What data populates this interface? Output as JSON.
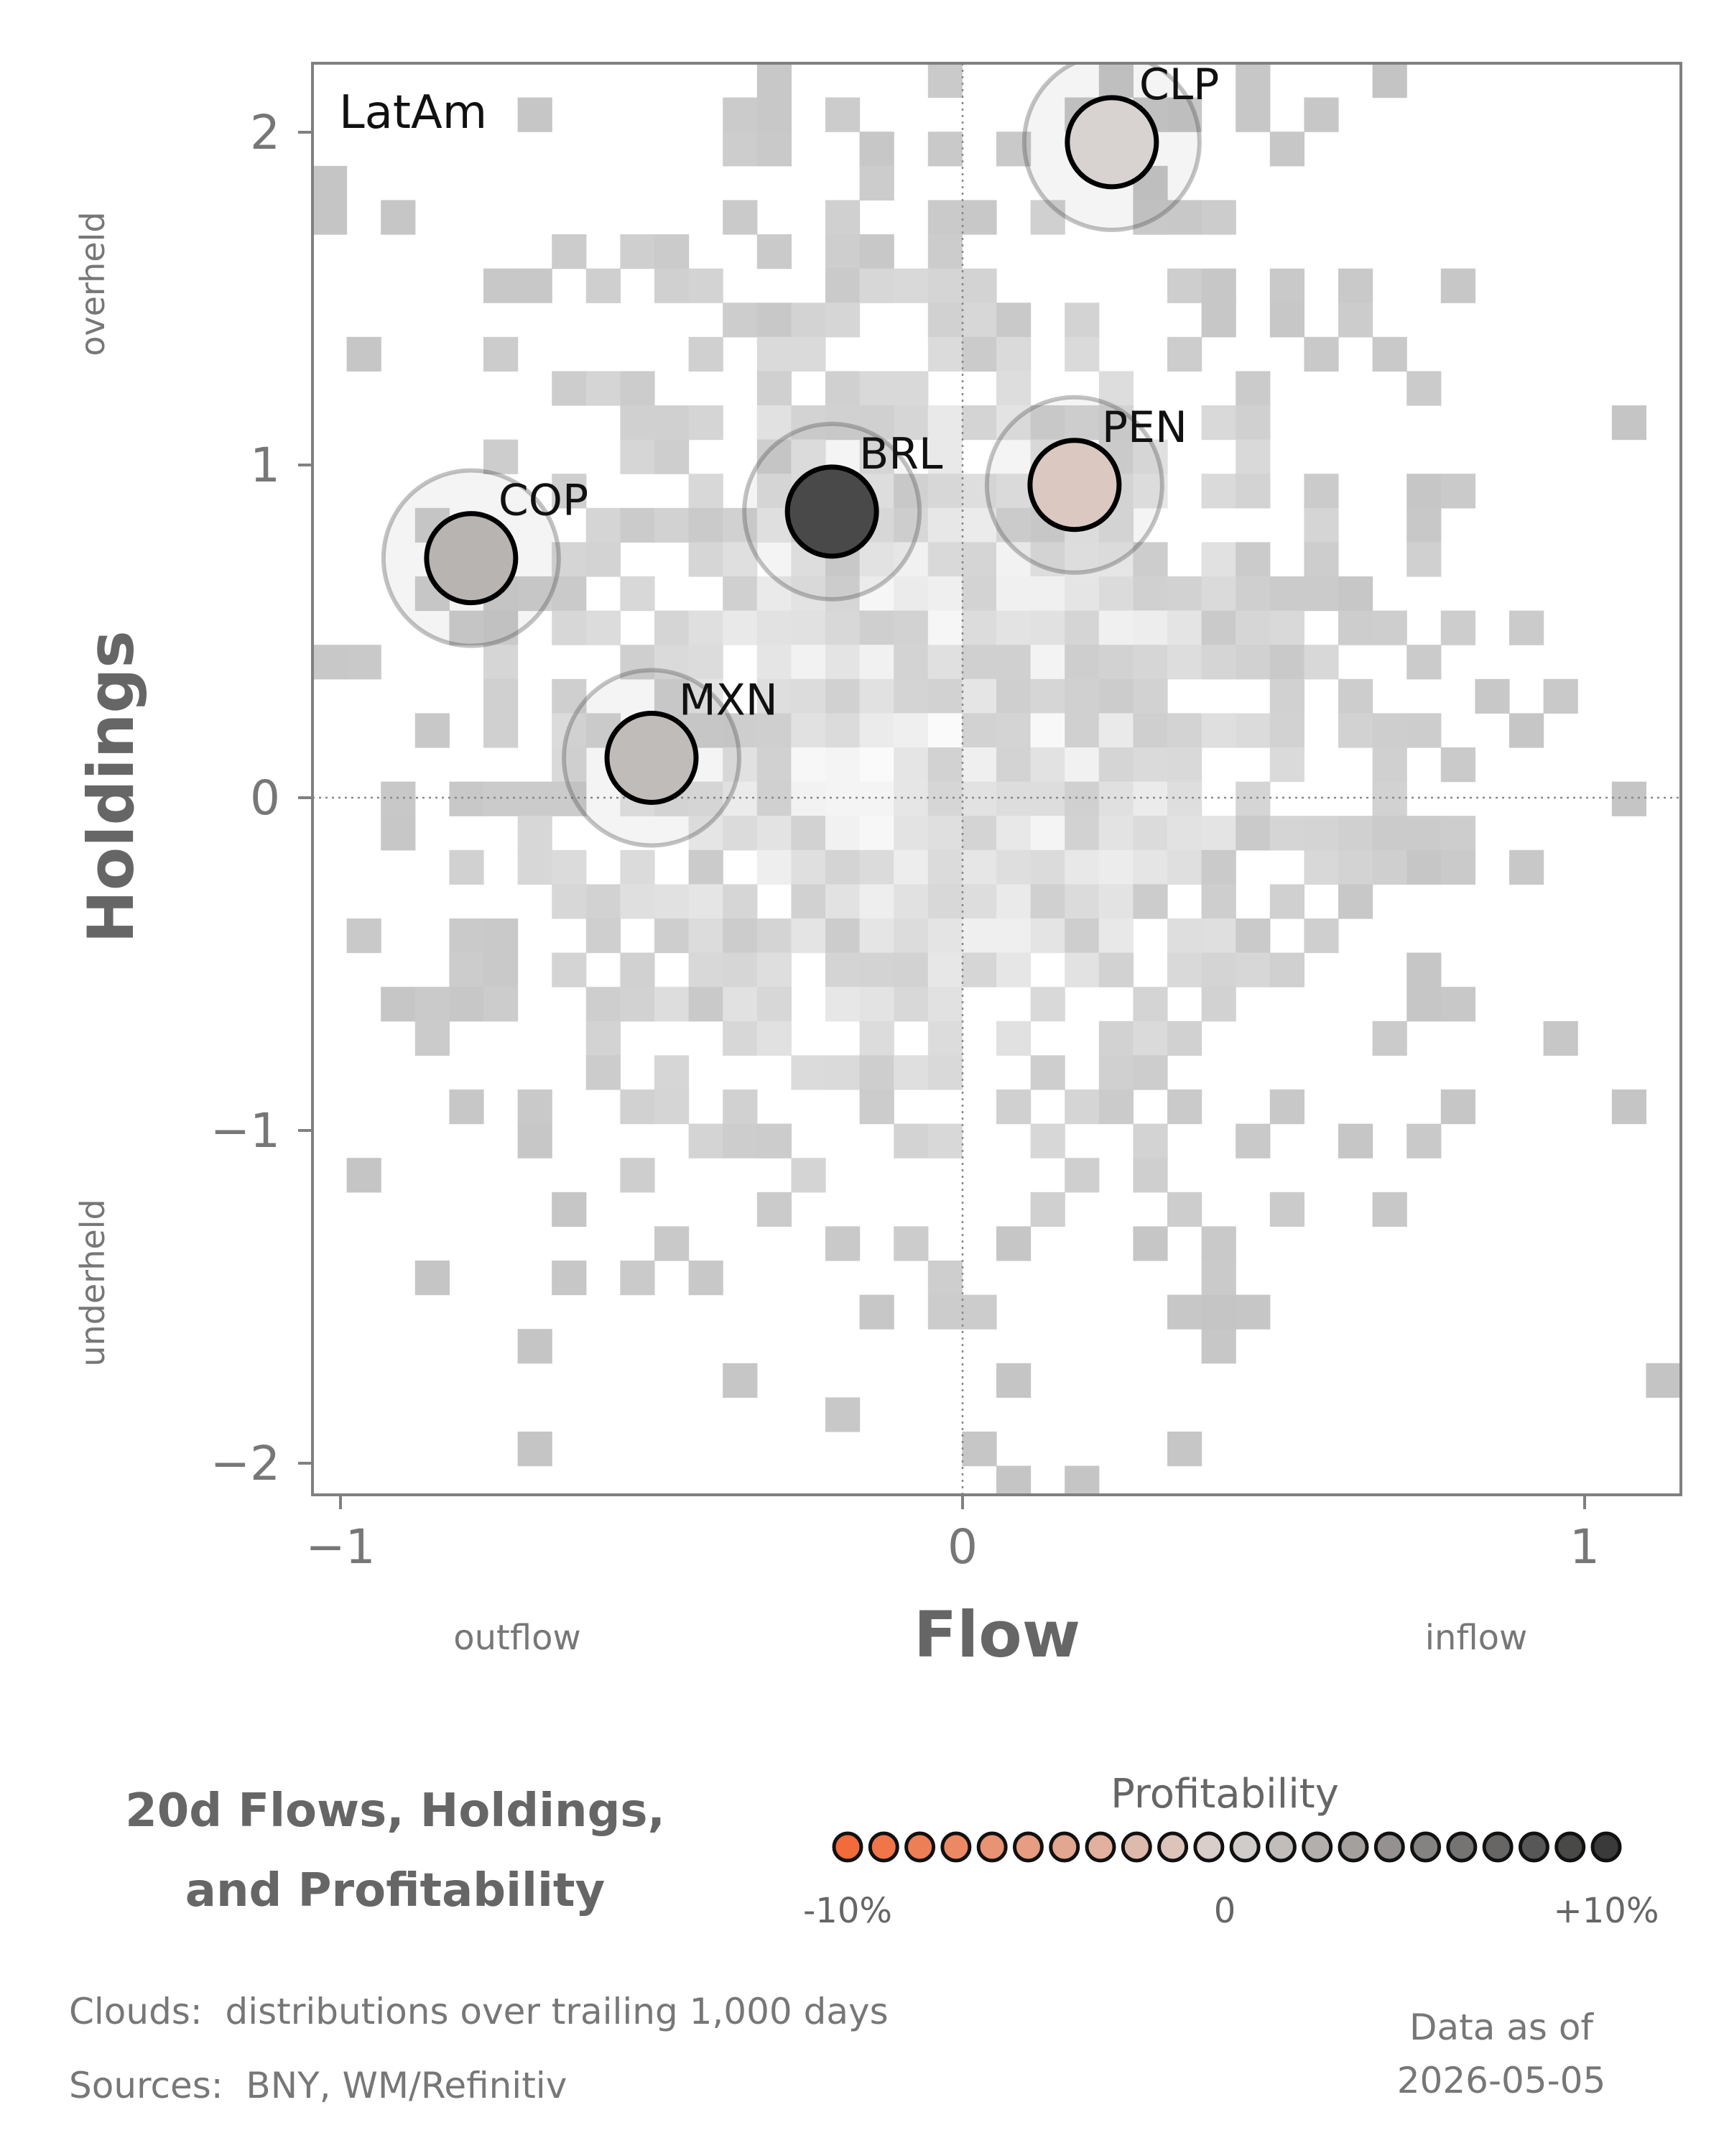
{
  "chart_data": {
    "type": "scatter",
    "panel_label": "LatAm",
    "xlabel": "Flow",
    "ylabel": "Holdings",
    "x_annotations": {
      "left": "outflow",
      "right": "inflow"
    },
    "y_annotations": {
      "top": "overheld",
      "bottom": "underheld"
    },
    "xlim": [
      -1.05,
      1.15
    ],
    "ylim": [
      -2.1,
      2.2
    ],
    "x_ticks": [
      -1,
      0,
      1
    ],
    "y_ticks": [
      -2,
      -1,
      0,
      1,
      2
    ],
    "x_tick_labels": [
      "−1",
      "0",
      "1"
    ],
    "y_tick_labels": [
      "−2",
      "−1",
      "0",
      "1",
      "2"
    ],
    "grid": false,
    "reference_lines": {
      "x": 0,
      "y": 0
    },
    "points": [
      {
        "label": "CLP",
        "x": 0.24,
        "y": 1.97,
        "profitability": 0.0
      },
      {
        "label": "PEN",
        "x": 0.18,
        "y": 0.94,
        "profitability": -0.01
      },
      {
        "label": "BRL",
        "x": -0.21,
        "y": 0.86,
        "profitability": 0.09
      },
      {
        "label": "COP",
        "x": -0.79,
        "y": 0.72,
        "profitability": 0.02
      },
      {
        "label": "MXN",
        "x": -0.5,
        "y": 0.12,
        "profitability": 0.015
      }
    ],
    "background": "2D histogram cloud of trailing distributions (grayscale)",
    "legend": {
      "title": "Profitability",
      "min_label": "-10%",
      "mid_label": "0",
      "max_label": "+10%",
      "steps": 22,
      "color_low": "#f26b3a",
      "color_mid": "#d8d3d0",
      "color_high": "#3a3a3a"
    }
  },
  "title": {
    "line1": "20d Flows, Holdings,",
    "line2": "and Profitability"
  },
  "footer": {
    "clouds": "Clouds:  distributions over trailing 1,000 days",
    "sources": "Sources:  BNY, WM/Refinitiv",
    "asof_label": "Data as of",
    "asof_date": "2026-05-05"
  }
}
